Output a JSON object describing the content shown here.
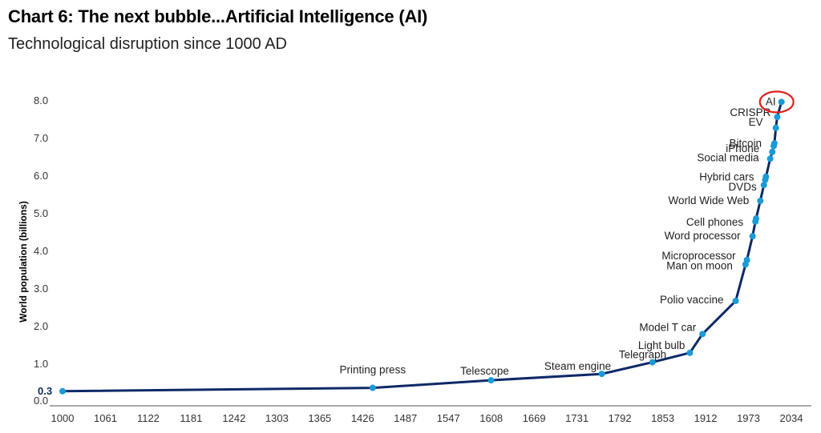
{
  "chart_data": {
    "type": "line",
    "title": "Chart 6: The next bubble...Artificial Intelligence (AI)",
    "subtitle": "Technological disruption since 1000 AD",
    "ylabel": "World population (billions)",
    "xlabel": "",
    "xlim": [
      1000,
      2034
    ],
    "ylim": [
      0,
      8
    ],
    "x_ticks": [
      "1000",
      "1061",
      "1122",
      "1181",
      "1242",
      "1303",
      "1365",
      "1426",
      "1487",
      "1547",
      "1608",
      "1669",
      "1731",
      "1792",
      "1853",
      "1912",
      "1973",
      "2034"
    ],
    "y_ticks": [
      "0.0",
      "1.0",
      "2.0",
      "3.0",
      "4.0",
      "5.0",
      "6.0",
      "7.0",
      "8.0"
    ],
    "start_value_label": "0.3",
    "highlight": "AI",
    "line_color": "#0d2a66",
    "marker_color": "#1a9ad6",
    "highlight_color": "#e0201b",
    "points": [
      {
        "year": 1000,
        "value": 0.26,
        "label": ""
      },
      {
        "year": 1440,
        "value": 0.35,
        "label": "Printing press"
      },
      {
        "year": 1608,
        "value": 0.55,
        "label": "Telescope"
      },
      {
        "year": 1765,
        "value": 0.72,
        "label": "Steam engine"
      },
      {
        "year": 1837,
        "value": 1.03,
        "label": "Telegraph"
      },
      {
        "year": 1890,
        "value": 1.28,
        "label": "Light bulb"
      },
      {
        "year": 1908,
        "value": 1.78,
        "label": "Model T car"
      },
      {
        "year": 1955,
        "value": 2.66,
        "label": "Polio vaccine"
      },
      {
        "year": 1969,
        "value": 3.63,
        "label": "Man on moon"
      },
      {
        "year": 1971,
        "value": 3.75,
        "label": "Microprocessor"
      },
      {
        "year": 1979,
        "value": 4.38,
        "label": "Word processor"
      },
      {
        "year": 1983,
        "value": 4.77,
        "label": "Cell phones"
      },
      {
        "year": 1984,
        "value": 4.85,
        "label": ""
      },
      {
        "year": 1990,
        "value": 5.32,
        "label": "World Wide Web"
      },
      {
        "year": 1995,
        "value": 5.74,
        "label": "DVDs"
      },
      {
        "year": 1997,
        "value": 5.88,
        "label": "Hybrid cars"
      },
      {
        "year": 1998,
        "value": 5.96,
        "label": ""
      },
      {
        "year": 2004,
        "value": 6.44,
        "label": "Social media"
      },
      {
        "year": 2007,
        "value": 6.62,
        "label": "iPhone"
      },
      {
        "year": 2009,
        "value": 6.78,
        "label": "Bitcoin"
      },
      {
        "year": 2010,
        "value": 6.85,
        "label": ""
      },
      {
        "year": 2012,
        "value": 7.26,
        "label": "EV"
      },
      {
        "year": 2014,
        "value": 7.55,
        "label": "CRISPR"
      },
      {
        "year": 2020,
        "value": 7.95,
        "label": "AI"
      }
    ]
  }
}
